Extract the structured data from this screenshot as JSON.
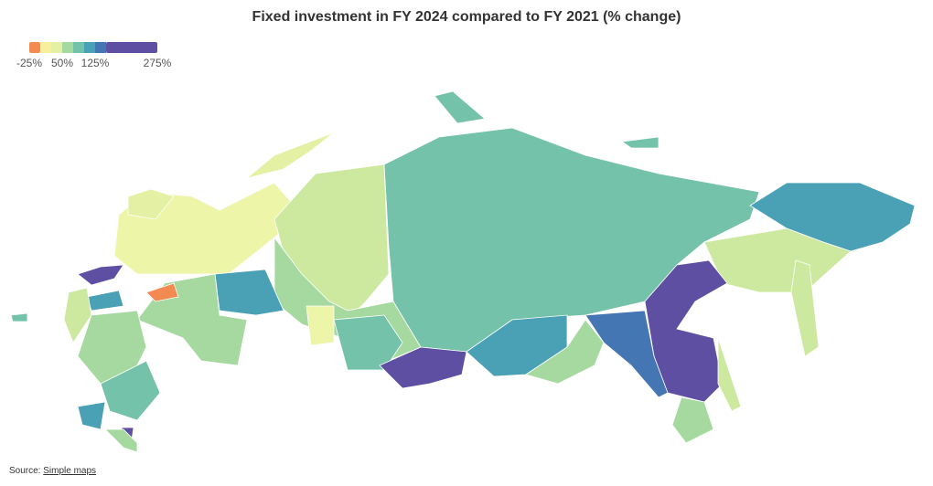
{
  "title": "Fixed investment in FY 2024 compared to FY 2021 (% change)",
  "legend": {
    "bins": [
      -25,
      0,
      25,
      50,
      75,
      100,
      125,
      150,
      275
    ],
    "colors": [
      "#f28a52",
      "#f6ef9b",
      "#e4f1a4",
      "#a6d9a0",
      "#74c2a9",
      "#4aa0b5",
      "#4576b4",
      "#5e4fa2"
    ],
    "ticks": [
      {
        "value": -25,
        "label": "-25%"
      },
      {
        "value": 50,
        "label": "50%"
      },
      {
        "value": 125,
        "label": "125%"
      },
      {
        "value": 275,
        "label": "275%"
      }
    ]
  },
  "source": {
    "label": "Source:",
    "link": "Simple maps"
  }
}
